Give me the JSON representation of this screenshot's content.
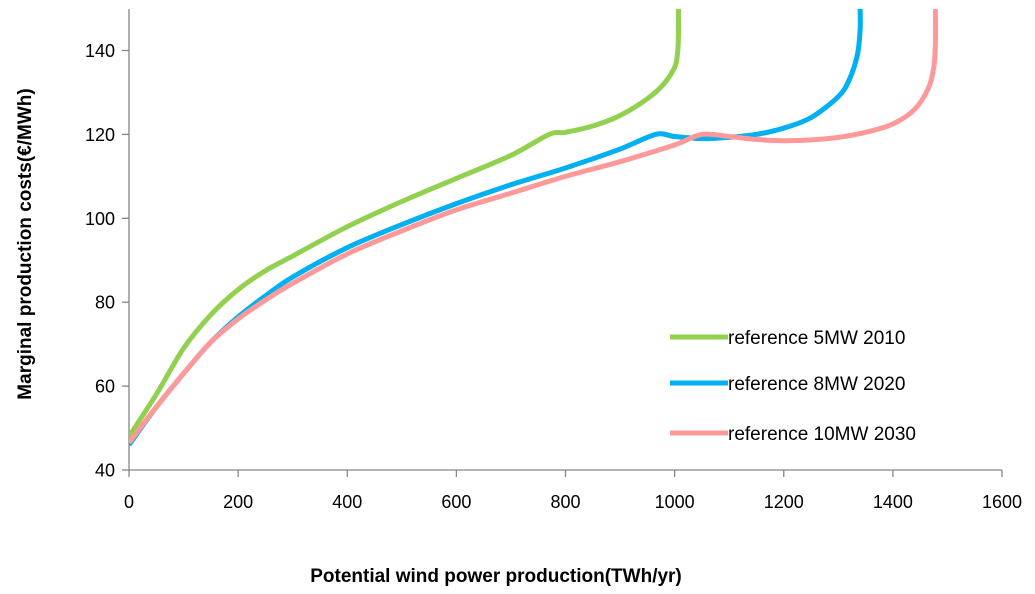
{
  "chart_data": {
    "type": "line",
    "title": "",
    "xlabel": "Potential wind power production(TWh/yr)",
    "ylabel": "Marginal production costs(€/MWh)",
    "xlim": [
      0,
      1600
    ],
    "ylim": [
      40,
      150
    ],
    "x_ticks": [
      0,
      200,
      400,
      600,
      800,
      1000,
      1200,
      1400,
      1600
    ],
    "y_ticks": [
      40,
      60,
      80,
      100,
      120,
      140
    ],
    "x_tick_labels": [
      "0",
      "200",
      "400",
      "600",
      "800",
      "1000",
      "1200",
      "1400",
      "1600"
    ],
    "y_tick_labels": [
      "40",
      "60",
      "80",
      "100",
      "120",
      "140"
    ],
    "grid": false,
    "legend_position": "bottom-right",
    "series": [
      {
        "name": "reference 5MW 2010",
        "color": "#92D050",
        "x": [
          0,
          50,
          100,
          150,
          200,
          250,
          300,
          400,
          500,
          600,
          700,
          770,
          800,
          850,
          900,
          950,
          980,
          1000,
          1005,
          1007,
          1007
        ],
        "y": [
          48,
          58,
          69,
          77,
          83,
          87.5,
          91,
          98,
          104,
          109.5,
          115,
          120,
          120.5,
          122,
          124.5,
          128.5,
          132,
          136,
          139,
          143,
          150
        ]
      },
      {
        "name": "reference 8MW 2020",
        "color": "#00B0F0",
        "x": [
          0,
          50,
          100,
          150,
          200,
          250,
          300,
          400,
          500,
          600,
          700,
          800,
          900,
          965,
          1000,
          1050,
          1100,
          1150,
          1200,
          1250,
          1300,
          1320,
          1335,
          1340,
          1340
        ],
        "y": [
          46,
          55,
          63,
          70.5,
          76.5,
          81.5,
          86,
          93,
          98.5,
          103.5,
          108,
          112,
          116.5,
          120,
          119.5,
          119,
          119.3,
          120,
          121.5,
          124,
          129,
          133,
          139,
          145,
          150
        ]
      },
      {
        "name": "reference 10MW 2030",
        "color": "#FF9999",
        "x": [
          0,
          50,
          100,
          150,
          200,
          250,
          300,
          400,
          500,
          600,
          700,
          800,
          900,
          1000,
          1050,
          1100,
          1150,
          1200,
          1250,
          1300,
          1350,
          1400,
          1440,
          1465,
          1475,
          1478,
          1478
        ],
        "y": [
          46.5,
          55,
          63,
          70.5,
          76,
          80.5,
          84.5,
          91.5,
          97,
          102,
          106,
          110,
          113.5,
          117.5,
          120,
          119.5,
          118.8,
          118.5,
          118.7,
          119.3,
          120.5,
          122.5,
          126,
          131,
          136,
          142,
          150
        ]
      }
    ]
  }
}
